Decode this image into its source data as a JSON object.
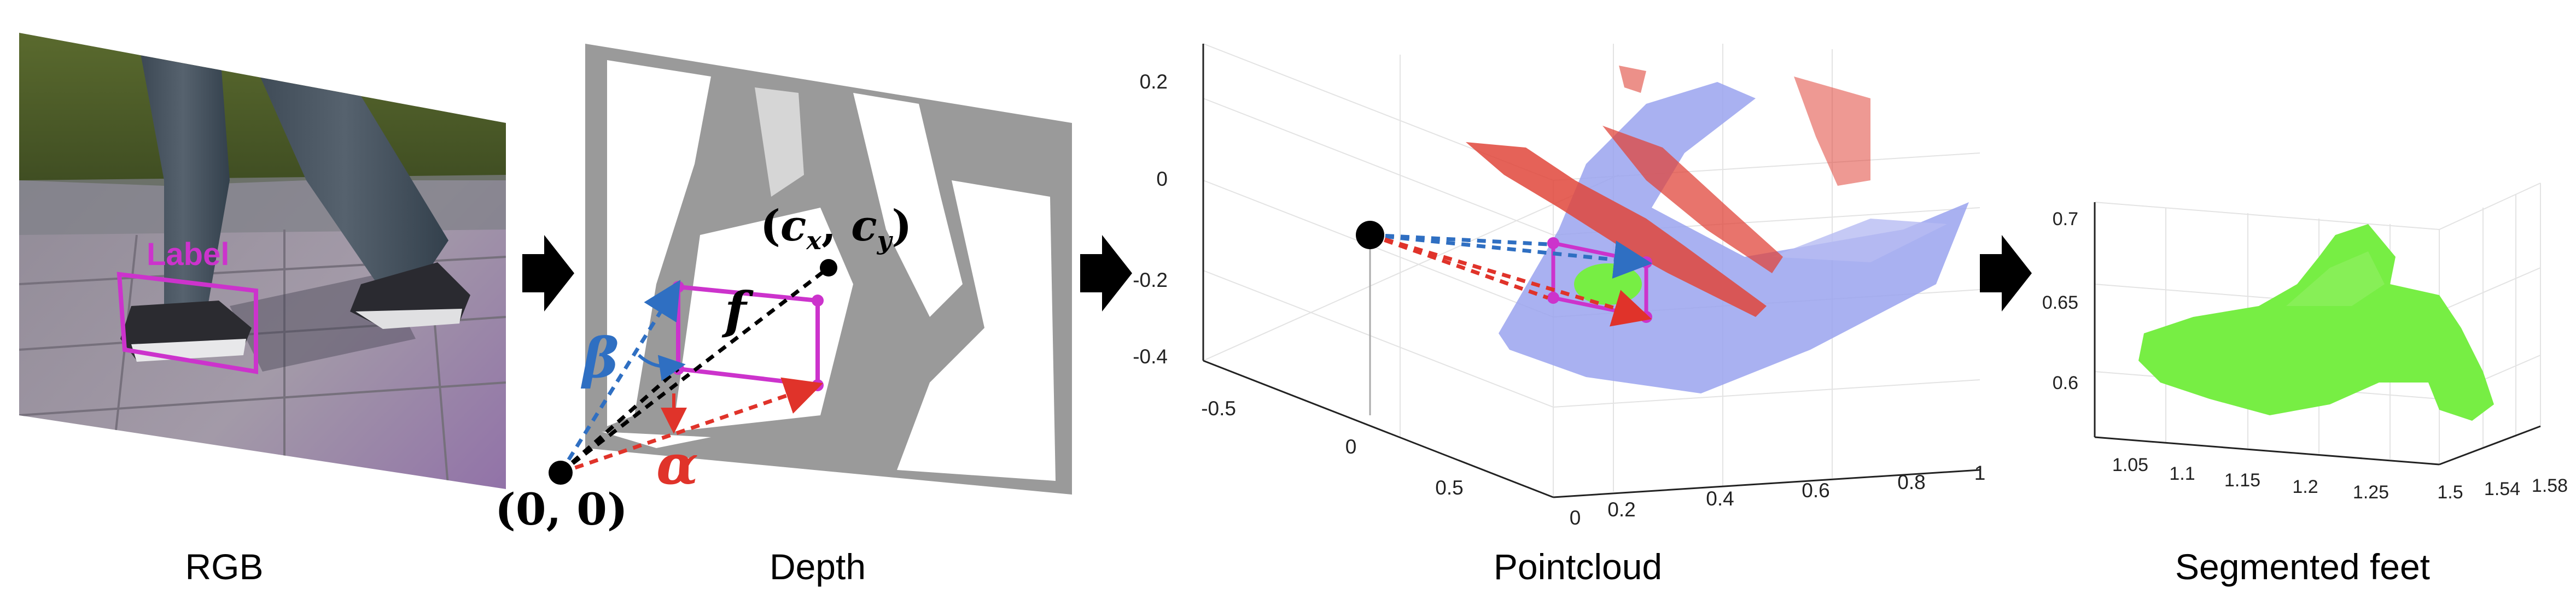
{
  "panels": {
    "rgb": {
      "caption": "RGB",
      "overlay_label": "Label"
    },
    "depth": {
      "caption": "Depth",
      "origin": "(0, 0)",
      "principal_point": "(c_x, c_y)",
      "focal": "f",
      "beta": "β",
      "alpha": "α"
    },
    "pointcloud": {
      "caption": "Pointcloud",
      "z_ticks": [
        "0.2",
        "0",
        "-0.2",
        "-0.4"
      ],
      "y_ticks": [
        "-0.5",
        "0",
        "0.5"
      ],
      "x_ticks": [
        "0",
        "0.2",
        "0.4",
        "0.6",
        "0.8",
        "1"
      ]
    },
    "segmented": {
      "caption": "Segmented feet",
      "z_ticks": [
        "0.7",
        "0.65",
        "0.6"
      ],
      "x_ticks": [
        "1.05",
        "1.1",
        "1.15",
        "1.2",
        "1.25"
      ],
      "y_ticks": [
        "1.5",
        "1.54",
        "1.58"
      ]
    }
  },
  "colors": {
    "label_box": "#cc33cc",
    "beta_arrow": "#2f6fc2",
    "alpha_arrow": "#e0332a",
    "cloud_blue": "#9aa3ef",
    "cloud_red": "#e0463b",
    "feet_green": "#77ee44",
    "arrow_black": "#000000"
  },
  "icons": [
    "right-arrow-icon"
  ]
}
